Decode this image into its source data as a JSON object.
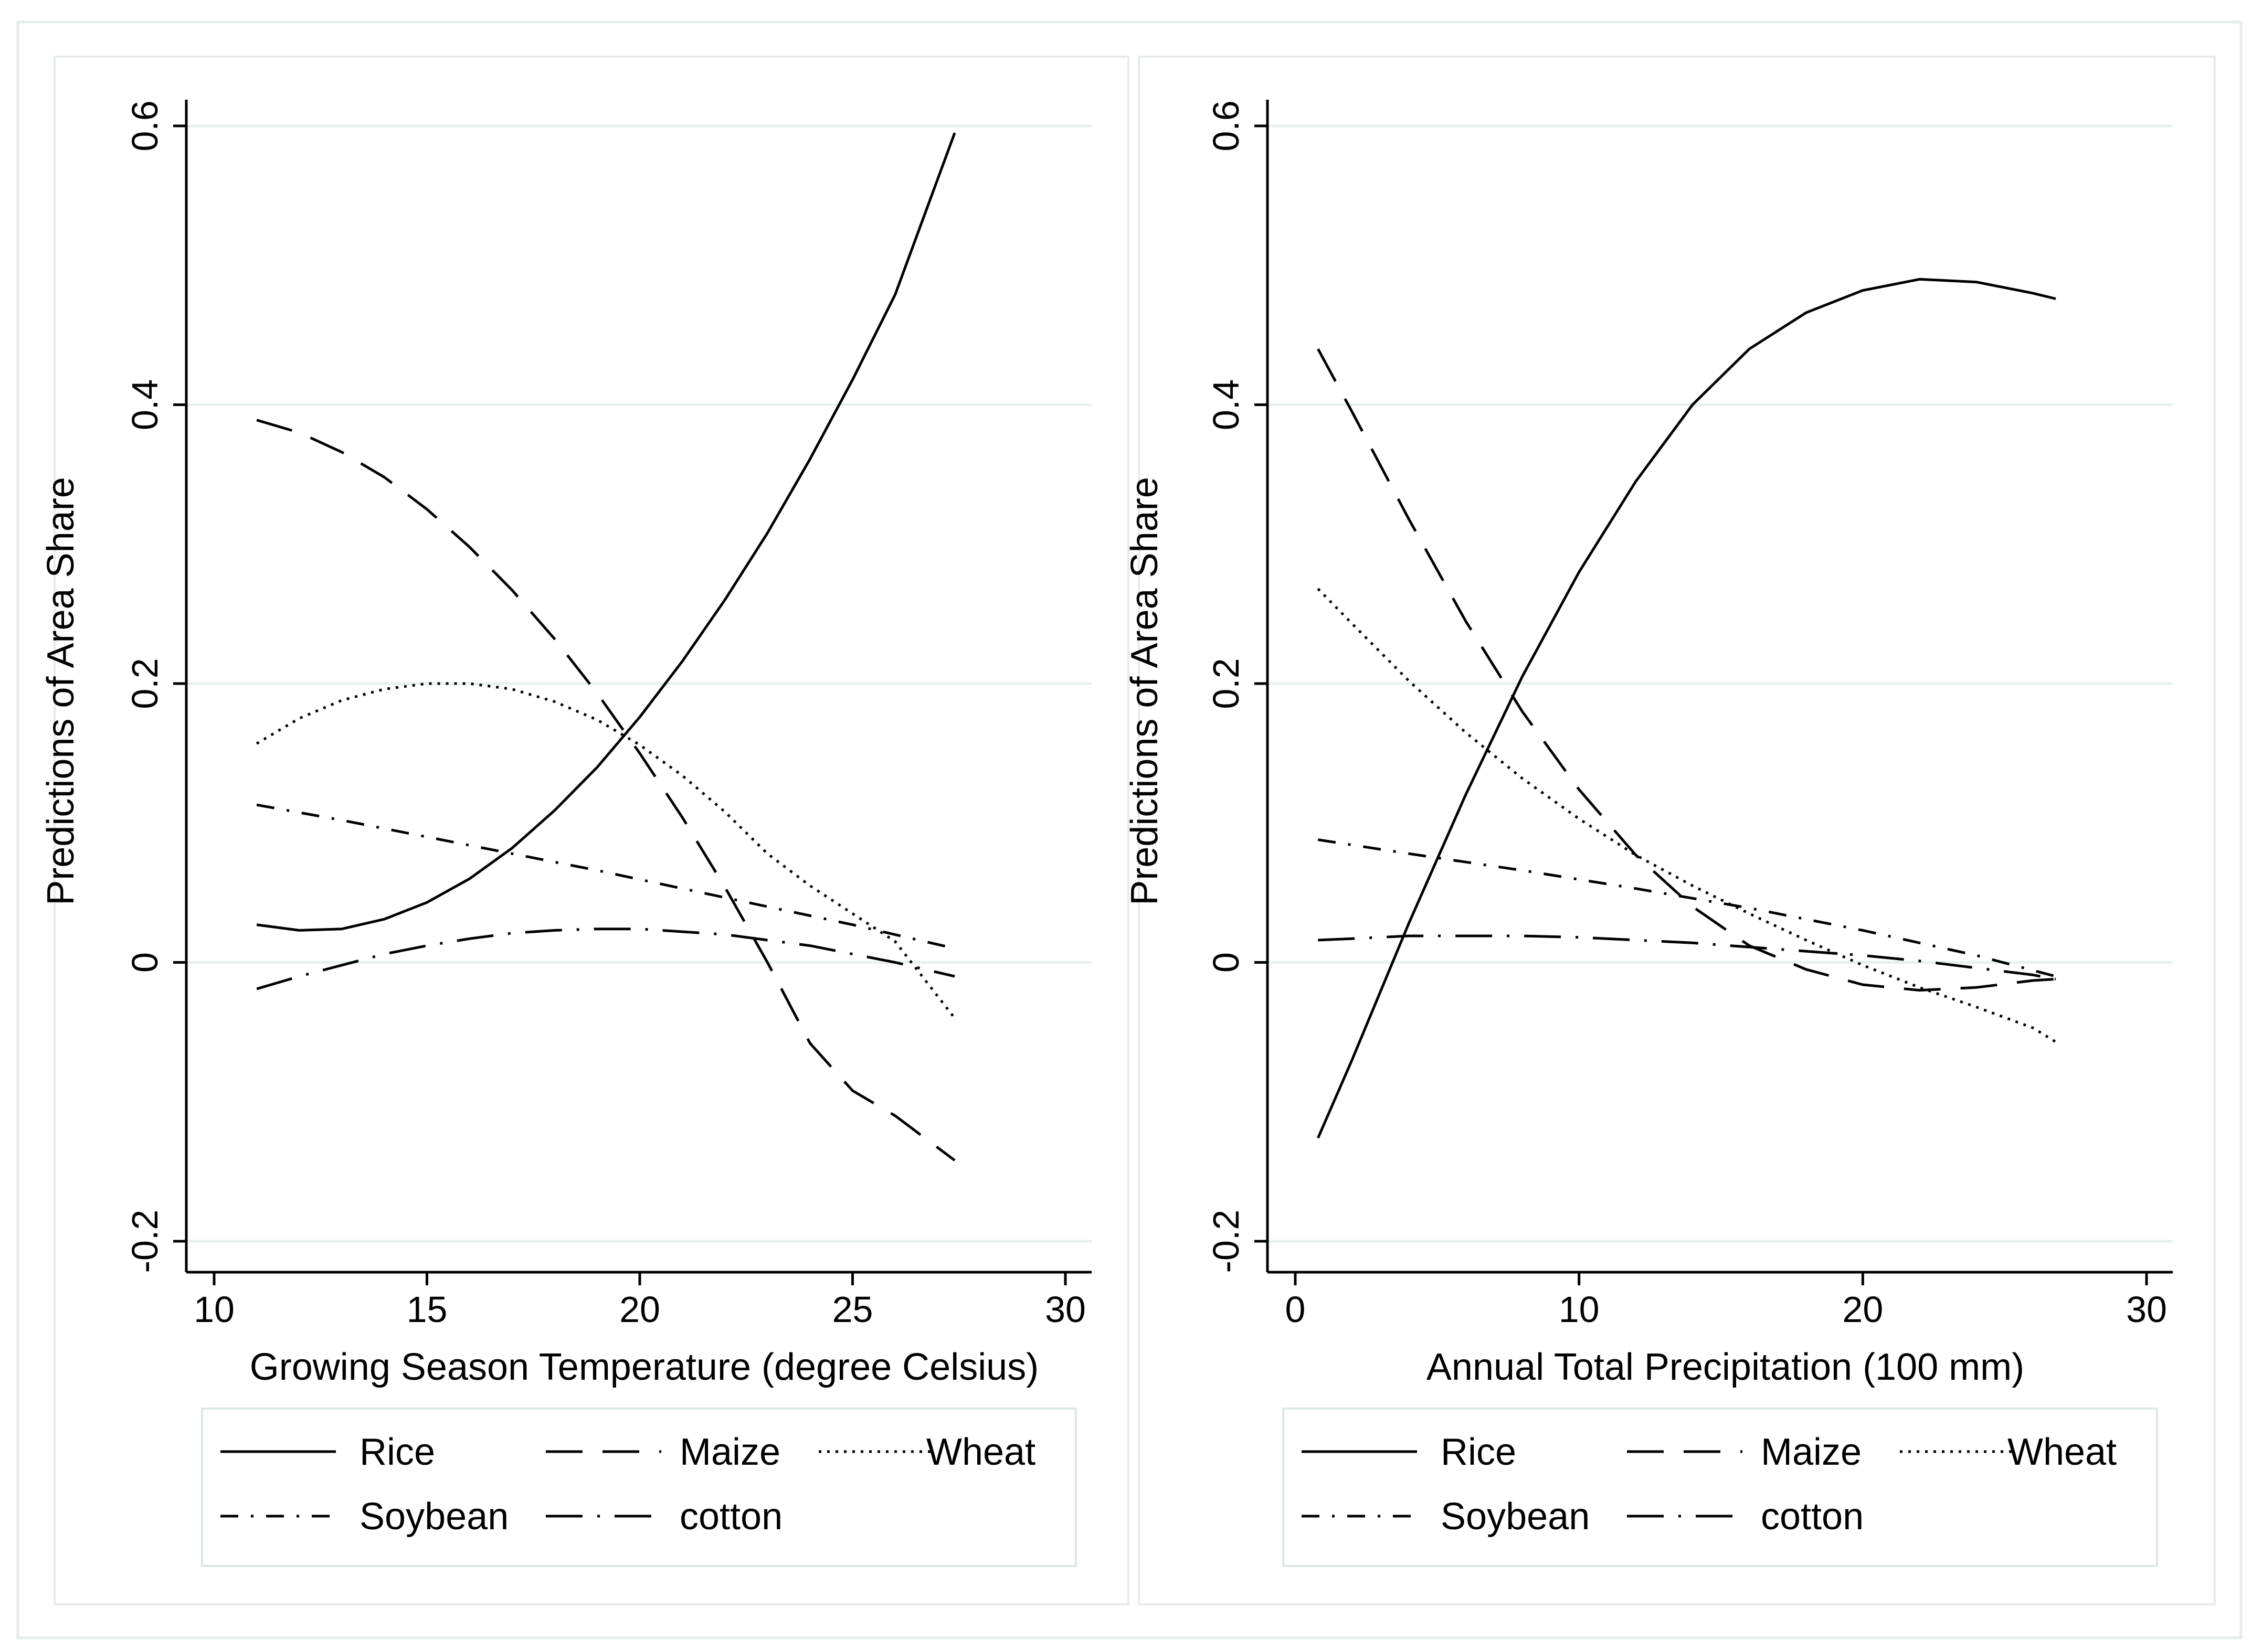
{
  "chart_data": [
    {
      "type": "line",
      "xlabel": "Growing Season Temperature (degree Celsius)",
      "ylabel": "Predictions of Area Share",
      "xlim": [
        10,
        30
      ],
      "ylim": [
        -0.2,
        0.6
      ],
      "xticks": [
        "10",
        "15",
        "20",
        "25",
        "30"
      ],
      "yticks": [
        "-0.2",
        "0",
        "0.2",
        "0.4",
        "0.6"
      ],
      "grid": true,
      "legend_position": "bottom",
      "series": [
        {
          "name": "Rice",
          "style": "solid",
          "x": [
            11,
            12,
            13,
            14,
            15,
            16,
            17,
            18,
            19,
            20,
            21,
            22,
            23,
            24,
            25,
            26,
            27.4
          ],
          "y": [
            0.027,
            0.023,
            0.024,
            0.031,
            0.043,
            0.06,
            0.082,
            0.109,
            0.14,
            0.176,
            0.216,
            0.26,
            0.308,
            0.361,
            0.418,
            0.479,
            0.595
          ]
        },
        {
          "name": "Maize",
          "style": "longdash",
          "x": [
            11,
            12,
            13,
            14,
            15,
            16,
            17,
            18,
            19,
            20,
            21,
            22,
            23,
            24,
            25,
            26,
            27.4
          ],
          "y": [
            0.389,
            0.38,
            0.366,
            0.348,
            0.325,
            0.298,
            0.267,
            0.232,
            0.193,
            0.15,
            0.104,
            0.054,
            0.0,
            -0.058,
            -0.092,
            -0.11,
            -0.142
          ]
        },
        {
          "name": "Wheat",
          "style": "dot",
          "x": [
            11,
            12,
            13,
            14,
            15,
            16,
            17,
            18,
            19,
            20,
            21,
            22,
            23,
            24,
            25,
            26,
            27.4
          ],
          "y": [
            0.157,
            0.175,
            0.188,
            0.196,
            0.2,
            0.2,
            0.196,
            0.187,
            0.174,
            0.156,
            0.134,
            0.108,
            0.078,
            0.055,
            0.035,
            0.015,
            -0.04
          ]
        },
        {
          "name": "Soybean",
          "style": "dashdot",
          "x": [
            11,
            13,
            15,
            17,
            19,
            21,
            23,
            25,
            27.4
          ],
          "y": [
            0.113,
            0.102,
            0.09,
            0.078,
            0.066,
            0.053,
            0.04,
            0.027,
            0.01
          ]
        },
        {
          "name": "cotton",
          "style": "longdashdot",
          "x": [
            11,
            12,
            13,
            14,
            15,
            16,
            17,
            18,
            19,
            20,
            21,
            22,
            23,
            24,
            25,
            26,
            27.4
          ],
          "y": [
            -0.019,
            -0.01,
            -0.002,
            0.006,
            0.012,
            0.017,
            0.021,
            0.023,
            0.024,
            0.024,
            0.022,
            0.02,
            0.016,
            0.012,
            0.006,
            0.0,
            -0.01
          ]
        }
      ]
    },
    {
      "type": "line",
      "xlabel": "Annual Total Precipitation (100 mm)",
      "ylabel": "Predictions of Area Share",
      "xlim": [
        0,
        30
      ],
      "ylim": [
        -0.2,
        0.6
      ],
      "xticks": [
        "0",
        "10",
        "20",
        "30"
      ],
      "yticks": [
        "-0.2",
        "0",
        "0.2",
        "0.4",
        "0.6"
      ],
      "grid": true,
      "legend_position": "bottom",
      "series": [
        {
          "name": "Rice",
          "style": "solid",
          "x": [
            0.8,
            2,
            4,
            6,
            8,
            10,
            12,
            14,
            16,
            18,
            20,
            22,
            24,
            26,
            26.8
          ],
          "y": [
            -0.126,
            -0.07,
            0.028,
            0.12,
            0.205,
            0.28,
            0.345,
            0.4,
            0.44,
            0.466,
            0.482,
            0.49,
            0.488,
            0.48,
            0.476
          ]
        },
        {
          "name": "Maize",
          "style": "longdash",
          "x": [
            0.8,
            2,
            4,
            6,
            8,
            10,
            12,
            14,
            16,
            18,
            20,
            22,
            24,
            26,
            26.8
          ],
          "y": [
            0.44,
            0.395,
            0.318,
            0.245,
            0.18,
            0.124,
            0.077,
            0.04,
            0.012,
            -0.005,
            -0.016,
            -0.02,
            -0.018,
            -0.013,
            -0.012
          ]
        },
        {
          "name": "Wheat",
          "style": "dot",
          "x": [
            0.8,
            2,
            4,
            6,
            8,
            10,
            12,
            14,
            16,
            18,
            20,
            22,
            24,
            26,
            26.8
          ],
          "y": [
            0.268,
            0.243,
            0.202,
            0.165,
            0.132,
            0.103,
            0.077,
            0.055,
            0.035,
            0.016,
            -0.002,
            -0.018,
            -0.032,
            -0.047,
            -0.057
          ]
        },
        {
          "name": "Soybean",
          "style": "dashdot",
          "x": [
            0.8,
            4,
            8,
            12,
            16,
            20,
            24,
            26.8
          ],
          "y": [
            0.088,
            0.078,
            0.066,
            0.053,
            0.039,
            0.023,
            0.005,
            -0.01
          ]
        },
        {
          "name": "cotton",
          "style": "longdashdot",
          "x": [
            0.8,
            2,
            4,
            6,
            8,
            10,
            12,
            14,
            16,
            18,
            20,
            22,
            24,
            26,
            26.8
          ],
          "y": [
            0.016,
            0.017,
            0.019,
            0.019,
            0.019,
            0.018,
            0.016,
            0.014,
            0.011,
            0.008,
            0.005,
            0.001,
            -0.004,
            -0.009,
            -0.012
          ]
        }
      ]
    }
  ]
}
